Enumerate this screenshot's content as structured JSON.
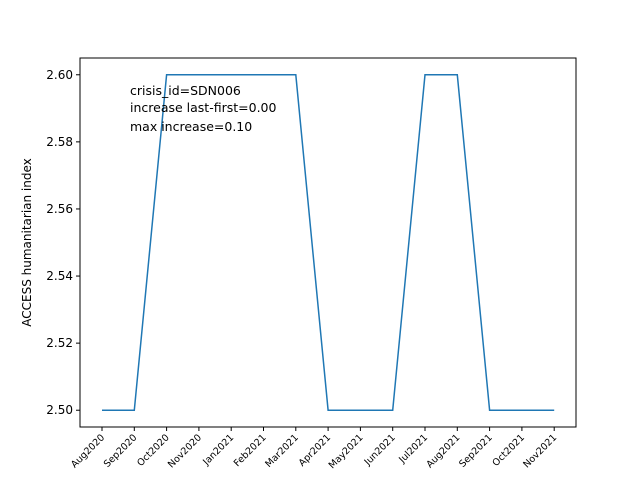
{
  "chart_data": {
    "type": "line",
    "ylabel": "ACCESS humanitarian index",
    "xlabel": "",
    "categories": [
      "Aug2020",
      "Sep2020",
      "Oct2020",
      "Nov2020",
      "Jan2021",
      "Feb2021",
      "Mar2021",
      "Apr2021",
      "May2021",
      "Jun2021",
      "Jul2021",
      "Aug2021",
      "Sep2021",
      "Oct2021",
      "Nov2021"
    ],
    "series": [
      {
        "values": [
          2.5,
          2.5,
          2.6,
          2.6,
          2.6,
          2.6,
          2.6,
          2.5,
          2.5,
          2.5,
          2.6,
          2.6,
          2.5,
          2.5,
          2.5
        ]
      }
    ],
    "ylim": [
      2.495,
      2.605
    ],
    "yticks": [
      "2.50",
      "2.52",
      "2.54",
      "2.56",
      "2.58",
      "2.60"
    ],
    "ytick_values": [
      2.5,
      2.52,
      2.54,
      2.56,
      2.58,
      2.6
    ],
    "grid": false,
    "annotations": [
      "crisis_id=SDN006",
      "increase last-first=0.00",
      "max increase=0.10"
    ],
    "line_color": "#1f77b4"
  }
}
